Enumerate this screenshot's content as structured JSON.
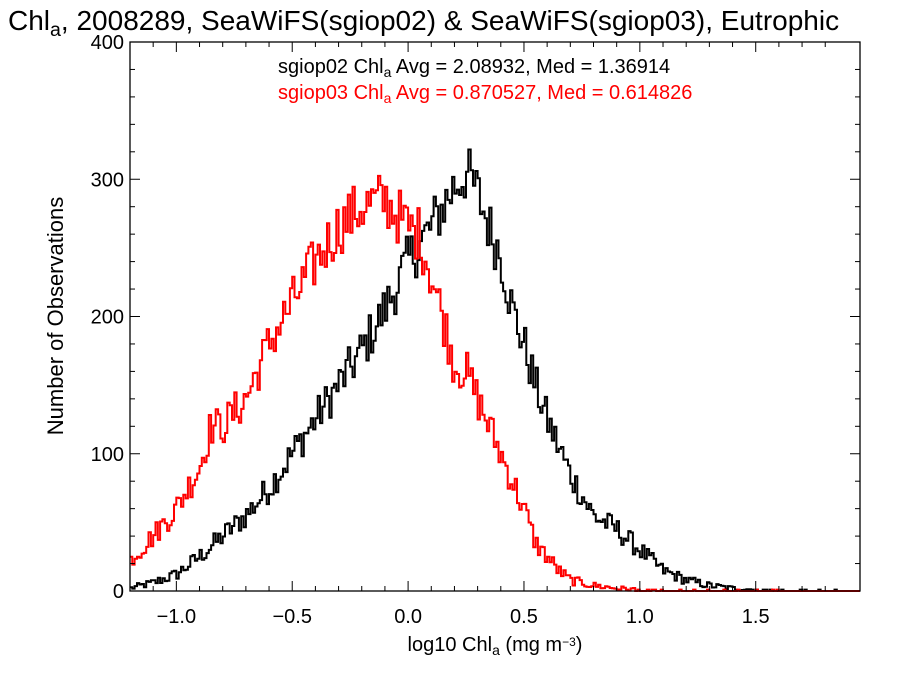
{
  "chart_data": {
    "type": "line",
    "title": {
      "parts": [
        {
          "text": "Chl",
          "sub": false
        },
        {
          "text": "a",
          "sub": true
        },
        {
          "text": ", 2008289, SeaWiFS(sgiop02) & SeaWiFS(sgiop03), Eutrophic",
          "sub": false
        }
      ]
    },
    "xlabel": {
      "parts": [
        {
          "text": "log10 Chl",
          "sub": false
        },
        {
          "text": "a",
          "sub": true
        },
        {
          "text": " (mg m",
          "sub": false
        },
        {
          "text": "−3",
          "sup": true
        },
        {
          "text": ")",
          "sub": false
        }
      ]
    },
    "ylabel": "Number of Observations",
    "xlim": [
      -1.2,
      1.95
    ],
    "ylim": [
      0,
      400
    ],
    "xticks": [
      -1.0,
      -0.5,
      0.0,
      0.5,
      1.0,
      1.5
    ],
    "xtick_labels": [
      "−1.0",
      "−0.5",
      "0.0",
      "0.5",
      "1.0",
      "1.5"
    ],
    "yticks": [
      0,
      100,
      200,
      300,
      400
    ],
    "ytick_labels": [
      "0",
      "100",
      "200",
      "300",
      "400"
    ],
    "bin_width": 0.01,
    "style": "step",
    "legend_placement": "top-center",
    "series": [
      {
        "name": "sgiop02",
        "color": "#000000",
        "annotation": {
          "parts": [
            {
              "text": "sgiop02 Chl",
              "sub": false
            },
            {
              "text": "a",
              "sub": true
            },
            {
              "text": " Avg = 2.08932, Med = 1.36914",
              "sub": false
            }
          ]
        },
        "anchors": [
          [
            -1.2,
            2
          ],
          [
            -1.1,
            6
          ],
          [
            -1.0,
            12
          ],
          [
            -0.9,
            25
          ],
          [
            -0.8,
            40
          ],
          [
            -0.7,
            55
          ],
          [
            -0.6,
            75
          ],
          [
            -0.5,
            100
          ],
          [
            -0.4,
            125
          ],
          [
            -0.3,
            150
          ],
          [
            -0.2,
            175
          ],
          [
            -0.1,
            205
          ],
          [
            0.0,
            240
          ],
          [
            0.1,
            265
          ],
          [
            0.2,
            295
          ],
          [
            0.25,
            305
          ],
          [
            0.3,
            290
          ],
          [
            0.35,
            265
          ],
          [
            0.4,
            245
          ],
          [
            0.45,
            205
          ],
          [
            0.5,
            180
          ],
          [
            0.55,
            150
          ],
          [
            0.6,
            125
          ],
          [
            0.7,
            85
          ],
          [
            0.8,
            55
          ],
          [
            0.9,
            45
          ],
          [
            1.0,
            30
          ],
          [
            1.1,
            15
          ],
          [
            1.2,
            8
          ],
          [
            1.3,
            4
          ],
          [
            1.4,
            2
          ],
          [
            1.5,
            1
          ],
          [
            1.6,
            0.5
          ],
          [
            1.95,
            0
          ]
        ]
      },
      {
        "name": "sgiop03",
        "color": "#ff0000",
        "annotation": {
          "parts": [
            {
              "text": "sgiop03 Chl",
              "sub": false
            },
            {
              "text": "a",
              "sub": true
            },
            {
              "text": " Avg = 0.870527, Med = 0.614826",
              "sub": false
            }
          ]
        },
        "anchors": [
          [
            -1.2,
            22
          ],
          [
            -1.1,
            40
          ],
          [
            -1.0,
            60
          ],
          [
            -0.9,
            90
          ],
          [
            -0.85,
            120
          ],
          [
            -0.8,
            120
          ],
          [
            -0.7,
            140
          ],
          [
            -0.6,
            180
          ],
          [
            -0.5,
            210
          ],
          [
            -0.4,
            240
          ],
          [
            -0.3,
            265
          ],
          [
            -0.2,
            280
          ],
          [
            -0.1,
            285
          ],
          [
            0.0,
            265
          ],
          [
            0.05,
            260
          ],
          [
            0.1,
            230
          ],
          [
            0.15,
            200
          ],
          [
            0.2,
            165
          ],
          [
            0.25,
            160
          ],
          [
            0.3,
            140
          ],
          [
            0.4,
            100
          ],
          [
            0.45,
            80
          ],
          [
            0.5,
            60
          ],
          [
            0.55,
            35
          ],
          [
            0.6,
            25
          ],
          [
            0.65,
            15
          ],
          [
            0.7,
            8
          ],
          [
            0.8,
            4
          ],
          [
            0.9,
            2
          ],
          [
            1.0,
            1
          ],
          [
            1.2,
            0.3
          ],
          [
            1.95,
            0
          ]
        ]
      }
    ]
  }
}
